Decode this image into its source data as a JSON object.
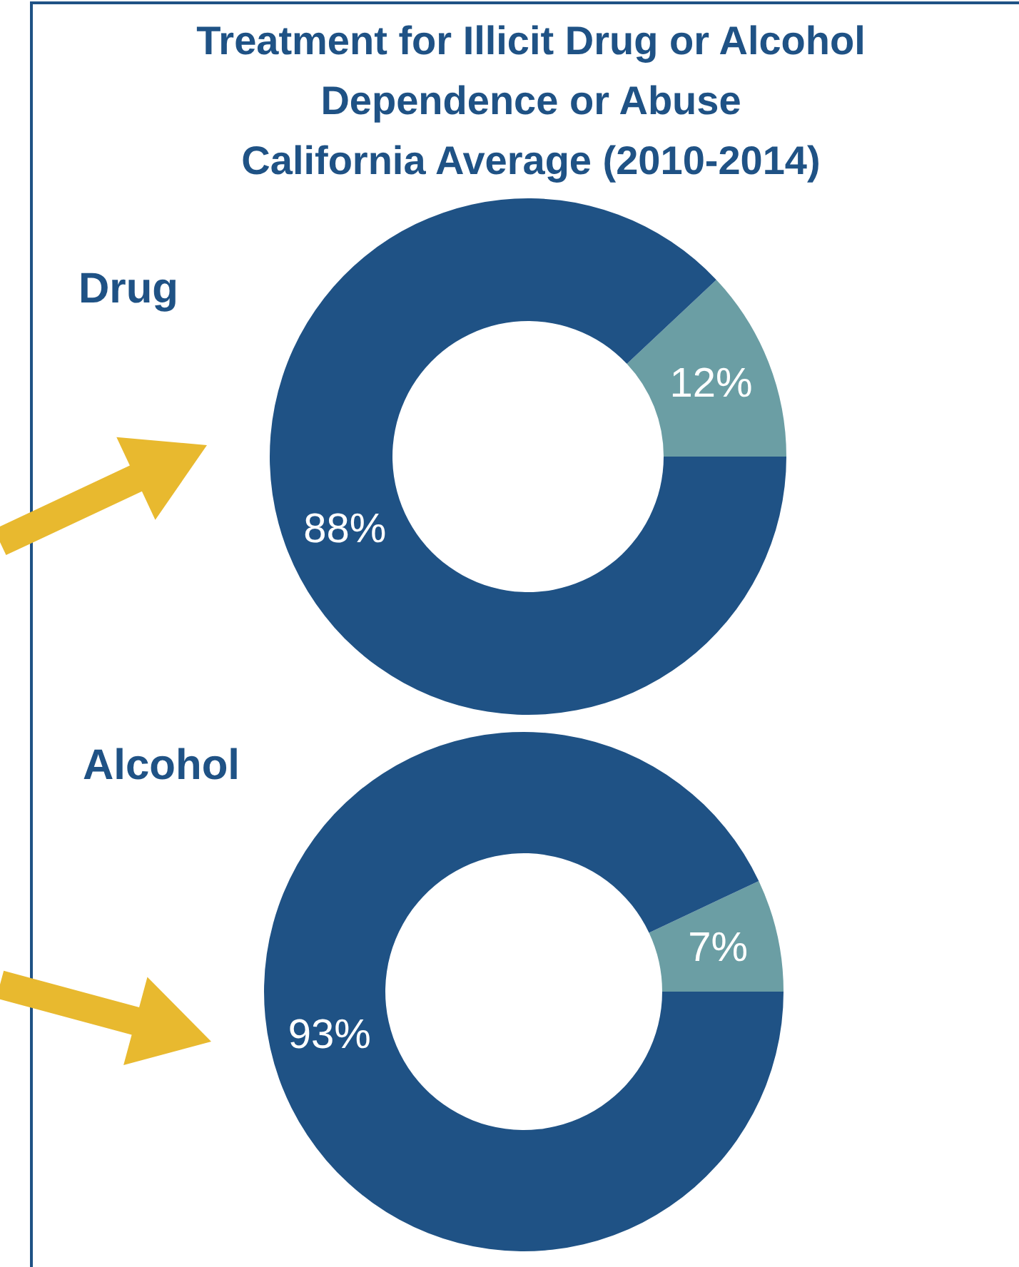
{
  "chart_data": [
    {
      "type": "donut",
      "title": "Treatment for Illicit Drug or Alcohol Dependence or Abuse",
      "subtitle": "California Average (2010-2014)",
      "annotations": [
        "Drug"
      ],
      "categories": [
        null,
        null
      ],
      "values": [
        12,
        88
      ],
      "colors": [
        "#6b9ea4",
        "#1f5285"
      ],
      "value_labels": [
        "12%",
        "88%"
      ]
    },
    {
      "type": "donut",
      "annotations": [
        "Alcohol"
      ],
      "categories": [
        null,
        null
      ],
      "values": [
        7,
        93
      ],
      "colors": [
        "#6b9ea4",
        "#1f5285"
      ],
      "value_labels": [
        "7%",
        "93%"
      ]
    }
  ]
}
